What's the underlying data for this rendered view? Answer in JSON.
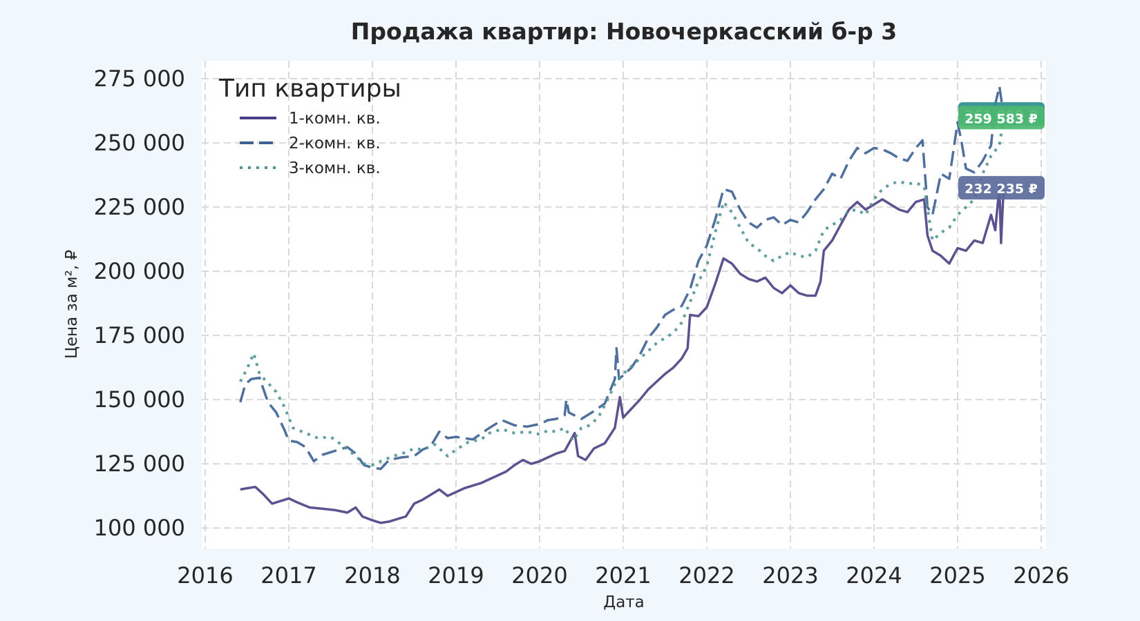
{
  "chart_data": {
    "type": "line",
    "title": "Продажа квартир: Новочеркасский б-р 3",
    "xlabel": "Дата",
    "ylabel": "Цена за м², ₽",
    "xlim": [
      2016.0,
      2026.0
    ],
    "ylim": [
      92000,
      282000
    ],
    "x_ticks": [
      "2016",
      "2017",
      "2018",
      "2019",
      "2020",
      "2021",
      "2022",
      "2023",
      "2024",
      "2025",
      "2026"
    ],
    "y_ticks": [
      {
        "value": 100000,
        "label": "100 000"
      },
      {
        "value": 125000,
        "label": "125 000"
      },
      {
        "value": 150000,
        "label": "150 000"
      },
      {
        "value": 175000,
        "label": "175 000"
      },
      {
        "value": 200000,
        "label": "200 000"
      },
      {
        "value": 225000,
        "label": "225 000"
      },
      {
        "value": 250000,
        "label": "250 000"
      },
      {
        "value": 275000,
        "label": "275 000"
      }
    ],
    "grid": true,
    "legend": {
      "title": "Тип квартиры",
      "placement": "top-left"
    },
    "series": [
      {
        "name": "1-комн. кв.",
        "color": "#4a3f84",
        "style": "solid",
        "points": [
          [
            2016.42,
            115000
          ],
          [
            2016.5,
            115500
          ],
          [
            2016.6,
            116000
          ],
          [
            2016.7,
            113000
          ],
          [
            2016.8,
            109500
          ],
          [
            2016.9,
            110500
          ],
          [
            2017.0,
            111500
          ],
          [
            2017.1,
            110000
          ],
          [
            2017.25,
            108000
          ],
          [
            2017.4,
            107500
          ],
          [
            2017.55,
            107000
          ],
          [
            2017.7,
            106000
          ],
          [
            2017.8,
            108000
          ],
          [
            2017.88,
            104500
          ],
          [
            2018.0,
            103000
          ],
          [
            2018.1,
            102000
          ],
          [
            2018.2,
            102500
          ],
          [
            2018.3,
            103500
          ],
          [
            2018.4,
            104500
          ],
          [
            2018.5,
            109500
          ],
          [
            2018.6,
            111000
          ],
          [
            2018.7,
            113000
          ],
          [
            2018.8,
            115000
          ],
          [
            2018.9,
            112500
          ],
          [
            2019.0,
            114000
          ],
          [
            2019.1,
            115500
          ],
          [
            2019.2,
            116500
          ],
          [
            2019.3,
            117500
          ],
          [
            2019.4,
            119000
          ],
          [
            2019.5,
            120500
          ],
          [
            2019.6,
            122000
          ],
          [
            2019.7,
            124500
          ],
          [
            2019.8,
            126500
          ],
          [
            2019.9,
            125000
          ],
          [
            2020.0,
            126000
          ],
          [
            2020.1,
            127500
          ],
          [
            2020.2,
            129000
          ],
          [
            2020.3,
            130000
          ],
          [
            2020.42,
            137000
          ],
          [
            2020.46,
            128000
          ],
          [
            2020.55,
            126500
          ],
          [
            2020.65,
            131000
          ],
          [
            2020.78,
            133000
          ],
          [
            2020.9,
            139000
          ],
          [
            2020.96,
            151000
          ],
          [
            2021.0,
            143000
          ],
          [
            2021.1,
            146500
          ],
          [
            2021.2,
            150000
          ],
          [
            2021.3,
            154000
          ],
          [
            2021.4,
            157000
          ],
          [
            2021.5,
            160000
          ],
          [
            2021.6,
            162500
          ],
          [
            2021.7,
            166000
          ],
          [
            2021.77,
            170000
          ],
          [
            2021.8,
            183000
          ],
          [
            2021.9,
            182500
          ],
          [
            2022.0,
            186000
          ],
          [
            2022.1,
            195000
          ],
          [
            2022.2,
            205000
          ],
          [
            2022.3,
            203000
          ],
          [
            2022.4,
            199000
          ],
          [
            2022.5,
            197000
          ],
          [
            2022.6,
            196000
          ],
          [
            2022.7,
            197500
          ],
          [
            2022.8,
            193500
          ],
          [
            2022.9,
            191500
          ],
          [
            2023.0,
            194500
          ],
          [
            2023.1,
            191500
          ],
          [
            2023.2,
            190500
          ],
          [
            2023.3,
            190500
          ],
          [
            2023.36,
            196000
          ],
          [
            2023.4,
            208000
          ],
          [
            2023.5,
            212000
          ],
          [
            2023.6,
            218000
          ],
          [
            2023.7,
            224000
          ],
          [
            2023.8,
            227000
          ],
          [
            2023.9,
            224000
          ],
          [
            2024.0,
            226000
          ],
          [
            2024.1,
            228000
          ],
          [
            2024.2,
            226000
          ],
          [
            2024.3,
            224000
          ],
          [
            2024.4,
            223000
          ],
          [
            2024.5,
            227000
          ],
          [
            2024.6,
            228000
          ],
          [
            2024.64,
            214000
          ],
          [
            2024.7,
            208000
          ],
          [
            2024.8,
            206000
          ],
          [
            2024.9,
            203000
          ],
          [
            2025.0,
            209000
          ],
          [
            2025.1,
            208000
          ],
          [
            2025.2,
            212000
          ],
          [
            2025.3,
            211000
          ],
          [
            2025.4,
            222000
          ],
          [
            2025.45,
            216000
          ],
          [
            2025.5,
            233000
          ],
          [
            2025.52,
            211000
          ],
          [
            2025.55,
            232235
          ]
        ]
      },
      {
        "name": "2-комн. кв.",
        "color": "#3c6193",
        "style": "dashed",
        "points": [
          [
            2016.42,
            149000
          ],
          [
            2016.48,
            156000
          ],
          [
            2016.55,
            158000
          ],
          [
            2016.65,
            158500
          ],
          [
            2016.75,
            149000
          ],
          [
            2016.85,
            145000
          ],
          [
            2016.95,
            138000
          ],
          [
            2017.0,
            134000
          ],
          [
            2017.1,
            133500
          ],
          [
            2017.2,
            131500
          ],
          [
            2017.3,
            126000
          ],
          [
            2017.4,
            128500
          ],
          [
            2017.55,
            130000
          ],
          [
            2017.7,
            131500
          ],
          [
            2017.8,
            129000
          ],
          [
            2017.9,
            124500
          ],
          [
            2018.0,
            123500
          ],
          [
            2018.1,
            123000
          ],
          [
            2018.2,
            126500
          ],
          [
            2018.35,
            127500
          ],
          [
            2018.5,
            128000
          ],
          [
            2018.6,
            130500
          ],
          [
            2018.7,
            132000
          ],
          [
            2018.8,
            137500
          ],
          [
            2018.9,
            135000
          ],
          [
            2019.0,
            135500
          ],
          [
            2019.2,
            134500
          ],
          [
            2019.4,
            139000
          ],
          [
            2019.55,
            142000
          ],
          [
            2019.7,
            140000
          ],
          [
            2019.85,
            139500
          ],
          [
            2020.0,
            140500
          ],
          [
            2020.1,
            142000
          ],
          [
            2020.2,
            142500
          ],
          [
            2020.3,
            144000
          ],
          [
            2020.3,
            144000
          ],
          [
            2020.32,
            150000
          ],
          [
            2020.35,
            145000
          ],
          [
            2020.5,
            142500
          ],
          [
            2020.65,
            145500
          ],
          [
            2020.78,
            148500
          ],
          [
            2020.9,
            158000
          ],
          [
            2020.92,
            170000
          ],
          [
            2020.95,
            158000
          ],
          [
            2021.1,
            162500
          ],
          [
            2021.2,
            167500
          ],
          [
            2021.3,
            174000
          ],
          [
            2021.4,
            178000
          ],
          [
            2021.5,
            183000
          ],
          [
            2021.6,
            185000
          ],
          [
            2021.7,
            186500
          ],
          [
            2021.8,
            193000
          ],
          [
            2021.9,
            204000
          ],
          [
            2022.0,
            210000
          ],
          [
            2022.1,
            220000
          ],
          [
            2022.2,
            232000
          ],
          [
            2022.3,
            231000
          ],
          [
            2022.4,
            224000
          ],
          [
            2022.5,
            219000
          ],
          [
            2022.6,
            217000
          ],
          [
            2022.7,
            220000
          ],
          [
            2022.8,
            221000
          ],
          [
            2022.9,
            218000
          ],
          [
            2023.0,
            220000
          ],
          [
            2023.1,
            219000
          ],
          [
            2023.2,
            223000
          ],
          [
            2023.3,
            228000
          ],
          [
            2023.4,
            232000
          ],
          [
            2023.5,
            238000
          ],
          [
            2023.6,
            236000
          ],
          [
            2023.7,
            243000
          ],
          [
            2023.8,
            248000
          ],
          [
            2023.9,
            246000
          ],
          [
            2024.0,
            248000
          ],
          [
            2024.1,
            247500
          ],
          [
            2024.2,
            246000
          ],
          [
            2024.3,
            244000
          ],
          [
            2024.4,
            243000
          ],
          [
            2024.5,
            248000
          ],
          [
            2024.58,
            251000
          ],
          [
            2024.64,
            225000
          ],
          [
            2024.7,
            222000
          ],
          [
            2024.8,
            238000
          ],
          [
            2024.9,
            236000
          ],
          [
            2025.0,
            258000
          ],
          [
            2025.05,
            250000
          ],
          [
            2025.1,
            240000
          ],
          [
            2025.2,
            238500
          ],
          [
            2025.3,
            243000
          ],
          [
            2025.4,
            249000
          ],
          [
            2025.45,
            265000
          ],
          [
            2025.5,
            272000
          ],
          [
            2025.55,
            261000
          ]
        ]
      },
      {
        "name": "3-комн. кв.",
        "color": "#4e9596",
        "style": "dotted",
        "points": [
          [
            2016.42,
            157000
          ],
          [
            2016.5,
            162000
          ],
          [
            2016.58,
            168000
          ],
          [
            2016.65,
            160000
          ],
          [
            2016.75,
            156500
          ],
          [
            2016.85,
            153000
          ],
          [
            2016.95,
            147000
          ],
          [
            2017.05,
            139000
          ],
          [
            2017.2,
            137000
          ],
          [
            2017.35,
            135000
          ],
          [
            2017.5,
            135500
          ],
          [
            2017.65,
            132000
          ],
          [
            2017.8,
            128000
          ],
          [
            2017.9,
            125000
          ],
          [
            2018.0,
            124500
          ],
          [
            2018.1,
            126000
          ],
          [
            2018.25,
            128000
          ],
          [
            2018.4,
            129500
          ],
          [
            2018.5,
            131000
          ],
          [
            2018.6,
            130500
          ],
          [
            2018.75,
            132500
          ],
          [
            2018.9,
            128000
          ],
          [
            2019.0,
            130500
          ],
          [
            2019.15,
            133500
          ],
          [
            2019.3,
            134500
          ],
          [
            2019.4,
            137000
          ],
          [
            2019.55,
            138500
          ],
          [
            2019.7,
            137000
          ],
          [
            2019.85,
            137500
          ],
          [
            2020.0,
            136500
          ],
          [
            2020.1,
            138000
          ],
          [
            2020.2,
            137500
          ],
          [
            2020.3,
            139000
          ],
          [
            2020.4,
            134000
          ],
          [
            2020.5,
            139000
          ],
          [
            2020.6,
            140000
          ],
          [
            2020.7,
            143000
          ],
          [
            2020.8,
            149000
          ],
          [
            2020.9,
            156000
          ],
          [
            2021.0,
            160000
          ],
          [
            2021.1,
            163000
          ],
          [
            2021.2,
            166000
          ],
          [
            2021.3,
            169000
          ],
          [
            2021.4,
            172000
          ],
          [
            2021.5,
            174000
          ],
          [
            2021.6,
            176000
          ],
          [
            2021.7,
            180000
          ],
          [
            2021.8,
            188000
          ],
          [
            2021.9,
            196000
          ],
          [
            2022.0,
            202000
          ],
          [
            2022.1,
            215000
          ],
          [
            2022.2,
            227000
          ],
          [
            2022.3,
            223000
          ],
          [
            2022.4,
            217000
          ],
          [
            2022.5,
            211000
          ],
          [
            2022.6,
            209000
          ],
          [
            2022.7,
            206000
          ],
          [
            2022.8,
            204000
          ],
          [
            2022.9,
            206000
          ],
          [
            2023.0,
            207500
          ],
          [
            2023.1,
            206000
          ],
          [
            2023.2,
            205500
          ],
          [
            2023.3,
            208000
          ],
          [
            2023.4,
            216000
          ],
          [
            2023.5,
            218000
          ],
          [
            2023.6,
            220000
          ],
          [
            2023.7,
            223500
          ],
          [
            2023.8,
            224000
          ],
          [
            2023.9,
            222000
          ],
          [
            2024.0,
            228000
          ],
          [
            2024.1,
            232000
          ],
          [
            2024.2,
            234000
          ],
          [
            2024.3,
            235000
          ],
          [
            2024.4,
            234000
          ],
          [
            2024.5,
            234500
          ],
          [
            2024.6,
            233000
          ],
          [
            2024.7,
            212000
          ],
          [
            2024.8,
            215000
          ],
          [
            2024.9,
            217000
          ],
          [
            2025.0,
            222000
          ],
          [
            2025.1,
            225000
          ],
          [
            2025.2,
            228000
          ],
          [
            2025.3,
            238000
          ],
          [
            2025.4,
            245000
          ],
          [
            2025.5,
            249000
          ],
          [
            2025.55,
            259583
          ]
        ]
      }
    ],
    "end_labels": [
      {
        "series": "2-комн. кв.",
        "value": 261000,
        "text": "261 000 ₽",
        "color": "#2e8e8e"
      },
      {
        "series": "3-комн. кв.",
        "value": 259583,
        "text": "259 583 ₽",
        "color": "#4cb970"
      },
      {
        "series": "1-комн. кв.",
        "value": 232235,
        "text": "232 235 ₽",
        "color": "#5a6a9a"
      }
    ]
  }
}
